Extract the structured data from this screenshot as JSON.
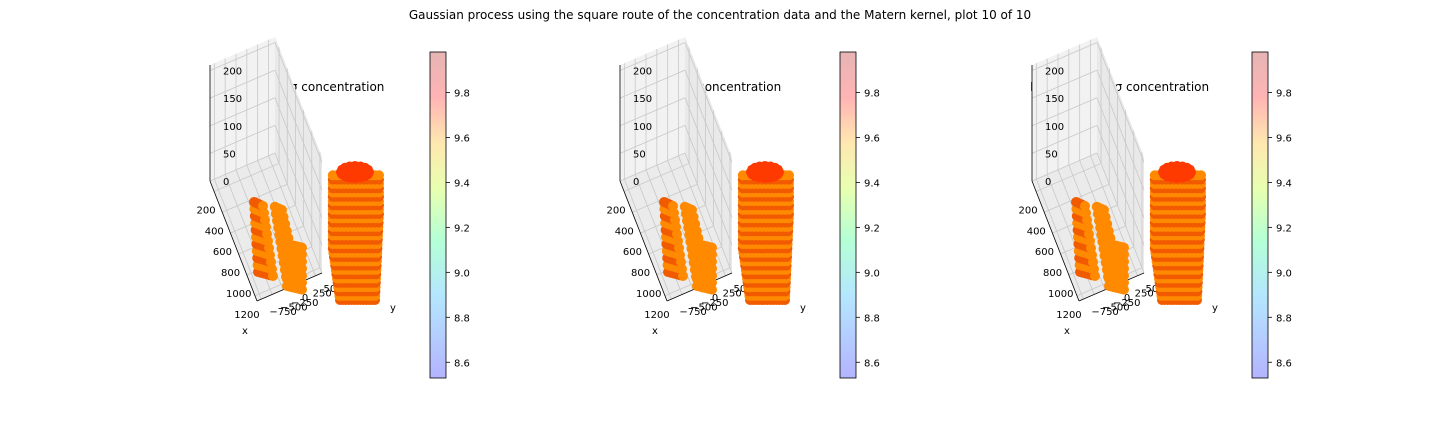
{
  "figure_title": "Gaussian process using the square route of the concentration data and the Matern kernel, plot 10 of 10",
  "colors": {
    "pane_left": "#e9e9e9",
    "pane_right": "#f2f2f2",
    "pane_floor": "#ebebeb",
    "grid": "#c8c8c8",
    "cloud_main": "#ff8a00",
    "cloud_dark": "#f25a00",
    "cloud_top": "#ff3a00"
  },
  "chart_data": [
    {
      "type": "scatter",
      "projection": "3d",
      "title": "Log mean - 2σ concentration",
      "xlabel": "x",
      "ylabel": "y",
      "zlabel": "",
      "x_ticks": [
        "200",
        "400",
        "600",
        "800",
        "1000",
        "1200"
      ],
      "y_ticks": [
        "500",
        "250",
        "0",
        "−250",
        "−500",
        "−750"
      ],
      "z_ticks": [
        "0",
        "50",
        "100",
        "150",
        "200"
      ],
      "xlim": [
        100,
        1250
      ],
      "ylim": [
        -850,
        650
      ],
      "zlim": [
        0,
        210
      ],
      "grid": true,
      "colormap": "jet",
      "colorbar": {
        "ticks": [
          "9.8",
          "9.6",
          "9.4",
          "9.2",
          "9.0",
          "8.8",
          "8.6"
        ],
        "range": [
          8.53,
          9.98
        ]
      },
      "clouds": [
        {
          "name": "small",
          "x_range": [
            400,
            700
          ],
          "y_range": [
            100,
            350
          ],
          "z_range": [
            0,
            100
          ],
          "value_range": [
            9.65,
            9.8
          ]
        },
        {
          "name": "large",
          "x_range": [
            750,
            1050
          ],
          "y_range": [
            -150,
            250
          ],
          "z_range": [
            0,
            200
          ],
          "value_range": [
            9.7,
            9.85
          ]
        }
      ]
    },
    {
      "type": "scatter",
      "projection": "3d",
      "title": "Log mean concentration",
      "xlabel": "x",
      "ylabel": "y",
      "zlabel": "",
      "x_ticks": [
        "200",
        "400",
        "600",
        "800",
        "1000",
        "1200"
      ],
      "y_ticks": [
        "500",
        "250",
        "0",
        "−250",
        "−500",
        "−750"
      ],
      "z_ticks": [
        "0",
        "50",
        "100",
        "150",
        "200"
      ],
      "xlim": [
        100,
        1250
      ],
      "ylim": [
        -850,
        650
      ],
      "zlim": [
        0,
        210
      ],
      "grid": true,
      "colormap": "jet",
      "colorbar": {
        "ticks": [
          "9.8",
          "9.6",
          "9.4",
          "9.2",
          "9.0",
          "8.8",
          "8.6"
        ],
        "range": [
          8.53,
          9.98
        ]
      },
      "clouds": [
        {
          "name": "small",
          "x_range": [
            400,
            700
          ],
          "y_range": [
            100,
            350
          ],
          "z_range": [
            0,
            100
          ],
          "value_range": [
            9.65,
            9.8
          ]
        },
        {
          "name": "large",
          "x_range": [
            750,
            1050
          ],
          "y_range": [
            -150,
            250
          ],
          "z_range": [
            0,
            200
          ],
          "value_range": [
            9.7,
            9.9
          ]
        }
      ]
    },
    {
      "type": "scatter",
      "projection": "3d",
      "title": "Log mean + 2σ concentration",
      "xlabel": "x",
      "ylabel": "y",
      "zlabel": "",
      "x_ticks": [
        "200",
        "400",
        "600",
        "800",
        "1000",
        "1200"
      ],
      "y_ticks": [
        "500",
        "250",
        "0",
        "−250",
        "−500",
        "−750"
      ],
      "z_ticks": [
        "0",
        "50",
        "100",
        "150",
        "200"
      ],
      "xlim": [
        100,
        1250
      ],
      "ylim": [
        -850,
        650
      ],
      "zlim": [
        0,
        210
      ],
      "grid": true,
      "colormap": "jet",
      "colorbar": {
        "ticks": [
          "9.8",
          "9.6",
          "9.4",
          "9.2",
          "9.0",
          "8.8",
          "8.6"
        ],
        "range": [
          8.53,
          9.98
        ]
      },
      "clouds": [
        {
          "name": "small",
          "x_range": [
            400,
            700
          ],
          "y_range": [
            100,
            350
          ],
          "z_range": [
            0,
            100
          ],
          "value_range": [
            9.65,
            9.85
          ]
        },
        {
          "name": "large",
          "x_range": [
            750,
            1050
          ],
          "y_range": [
            -150,
            250
          ],
          "z_range": [
            0,
            200
          ],
          "value_range": [
            9.7,
            9.9
          ]
        }
      ]
    }
  ]
}
